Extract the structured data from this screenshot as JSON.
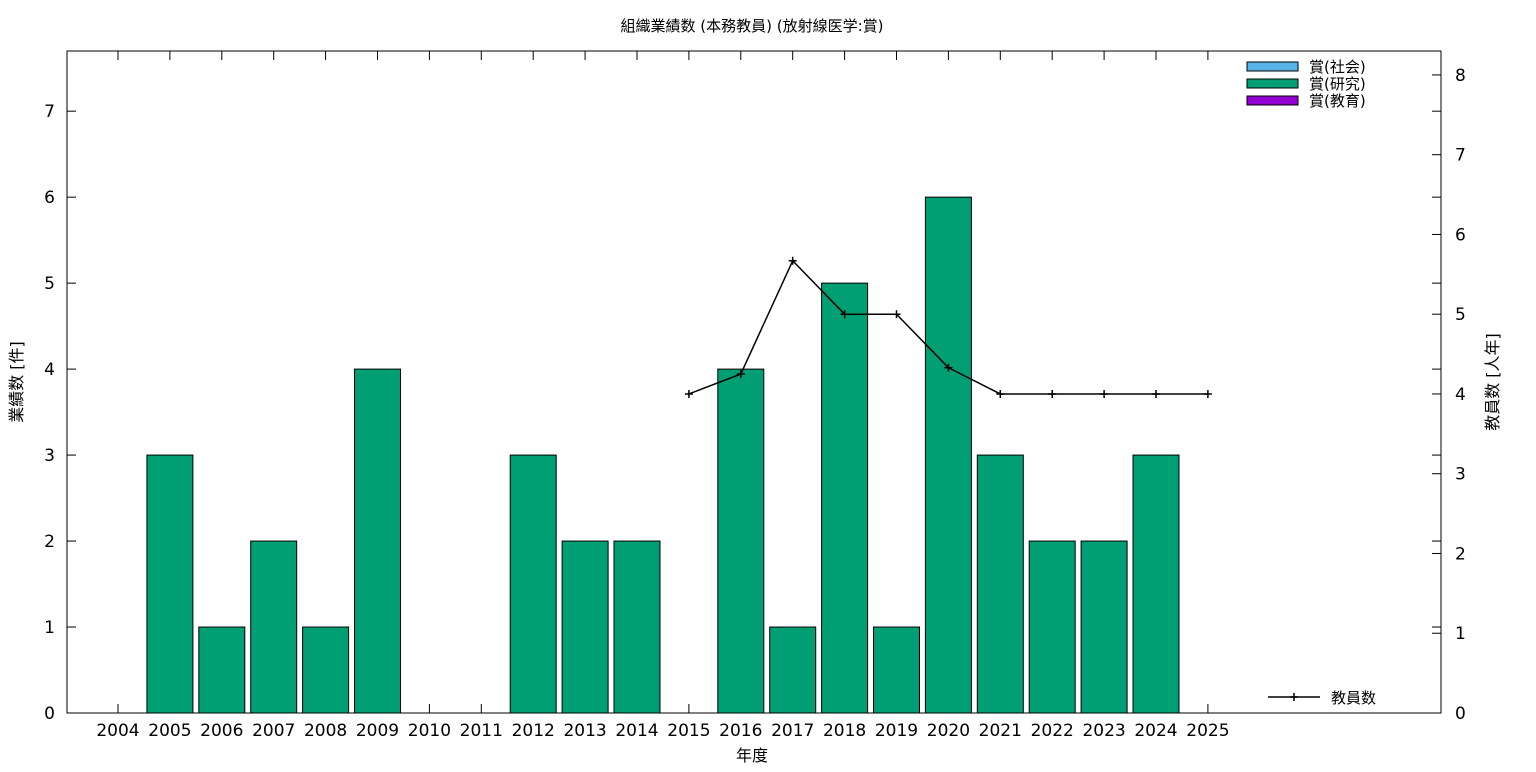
{
  "chart_data": {
    "type": "bar",
    "title": "組織業績数 (本務教員) (放射線医学:賞)",
    "xlabel": "年度",
    "ylabel": "業績数 [件]",
    "y2label": "教員数 [人年]",
    "categories": [
      "2004",
      "2005",
      "2006",
      "2007",
      "2008",
      "2009",
      "2010",
      "2011",
      "2012",
      "2013",
      "2014",
      "2015",
      "2016",
      "2017",
      "2018",
      "2019",
      "2020",
      "2021",
      "2022",
      "2023",
      "2024",
      "2025"
    ],
    "ylim": [
      0,
      7.7
    ],
    "yticks": [
      0,
      1,
      2,
      3,
      4,
      5,
      6,
      7
    ],
    "y2lim": [
      0,
      8.3
    ],
    "y2ticks": [
      0,
      1,
      2,
      3,
      4,
      5,
      6,
      7,
      8
    ],
    "grid": false,
    "legend_position": "top-right",
    "series": [
      {
        "name": "賞(社会)",
        "color": "#56b4e9",
        "values": [
          0,
          0,
          0,
          0,
          0,
          0,
          0,
          0,
          0,
          0,
          0,
          0,
          0,
          0,
          0,
          0,
          0,
          0,
          0,
          0,
          0,
          0
        ]
      },
      {
        "name": "賞(研究)",
        "color": "#009e73",
        "values": [
          0,
          3,
          1,
          2,
          1,
          4,
          0,
          0,
          3,
          2,
          2,
          0,
          4,
          1,
          5,
          1,
          6,
          3,
          2,
          2,
          3,
          0
        ]
      },
      {
        "name": "賞(教育)",
        "color": "#9400d3",
        "values": [
          0,
          0,
          0,
          0,
          0,
          0,
          0,
          0,
          0,
          0,
          0,
          0,
          0,
          0,
          0,
          0,
          0,
          0,
          0,
          0,
          0,
          0
        ]
      }
    ],
    "line_series": {
      "name": "教員数",
      "color": "#000000",
      "axis": "y2",
      "points": [
        {
          "x": "2015",
          "y": 4.0
        },
        {
          "x": "2016",
          "y": 4.25
        },
        {
          "x": "2017",
          "y": 5.67
        },
        {
          "x": "2018",
          "y": 5.0
        },
        {
          "x": "2019",
          "y": 5.0
        },
        {
          "x": "2020",
          "y": 4.33
        },
        {
          "x": "2021",
          "y": 4.0
        },
        {
          "x": "2022",
          "y": 4.0
        },
        {
          "x": "2023",
          "y": 4.0
        },
        {
          "x": "2024",
          "y": 4.0
        },
        {
          "x": "2025",
          "y": 4.0
        }
      ]
    }
  }
}
